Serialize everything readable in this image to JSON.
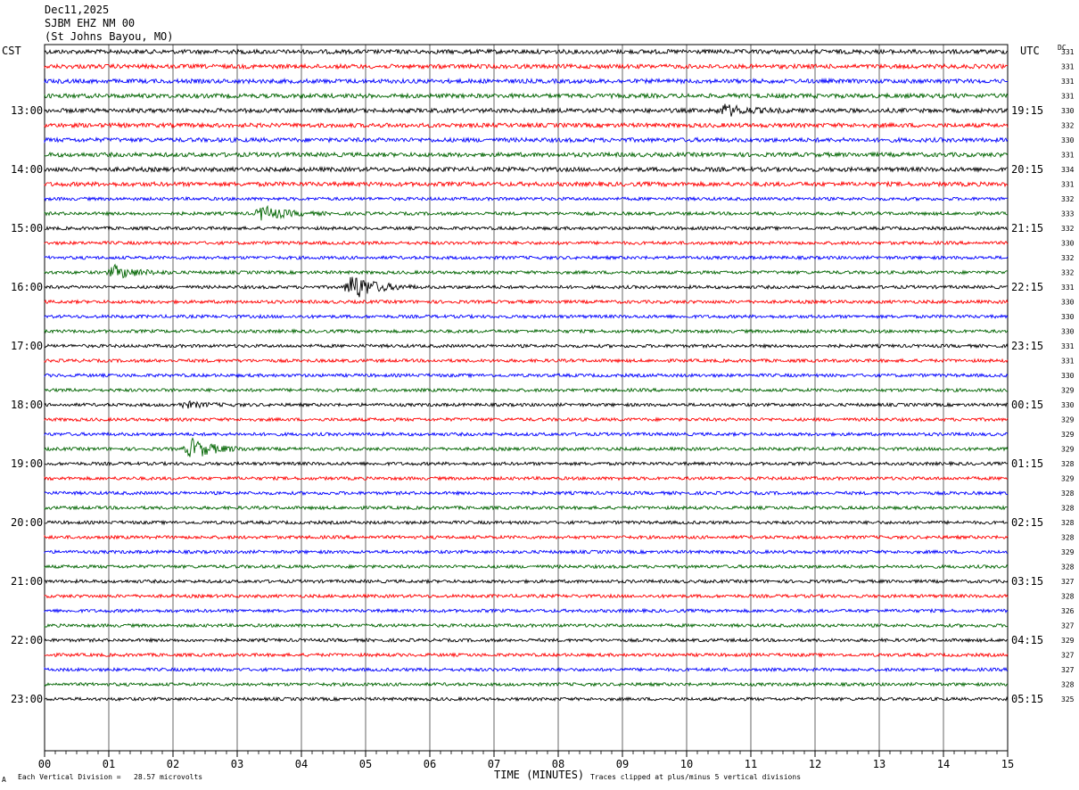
{
  "header": {
    "date": "Dec11,2025",
    "station": "SJBM EHZ NM 00",
    "location": "(St Johns Bayou, MO)"
  },
  "labels": {
    "left_zone": "CST",
    "right_zone": "UTC",
    "dc": "DC",
    "x_title": "TIME (MINUTES)",
    "footer_left_mark": "A",
    "footer_left": "Each Vertical Division =   28.57 microvolts",
    "footer_right": "Traces clipped at plus/minus 5 vertical divisions"
  },
  "chart_data": {
    "type": "line",
    "title": "SJBM EHZ NM 00",
    "xlabel": "TIME (MINUTES)",
    "ylabel": "",
    "xlim": [
      0,
      15
    ],
    "x_ticks": [
      "00",
      "01",
      "02",
      "03",
      "04",
      "05",
      "06",
      "07",
      "08",
      "09",
      "10",
      "11",
      "12",
      "13",
      "14",
      "15"
    ],
    "trace_colors": [
      "#000000",
      "#ff0000",
      "#0000ff",
      "#006400"
    ],
    "left_hour_labels": [
      "13:00",
      "14:00",
      "15:00",
      "16:00",
      "17:00",
      "18:00",
      "19:00",
      "20:00",
      "21:00",
      "22:00",
      "23:00"
    ],
    "right_hour_labels": [
      "19:15",
      "20:15",
      "21:15",
      "22:15",
      "23:15",
      "00:15",
      "01:15",
      "02:15",
      "03:15",
      "04:15",
      "05:15"
    ],
    "dc_offsets": [
      331,
      331,
      331,
      331,
      330,
      332,
      330,
      331,
      334,
      331,
      332,
      333,
      332,
      330,
      332,
      332,
      331,
      330,
      330,
      330,
      331,
      331,
      330,
      329,
      330,
      329,
      329,
      329,
      328,
      329,
      328,
      328,
      328,
      328,
      329,
      328,
      327,
      328,
      326,
      327,
      329,
      327,
      327,
      328,
      325
    ],
    "events": [
      {
        "trace": 11,
        "minute": 3.4,
        "amplitude": 8
      },
      {
        "trace": 15,
        "minute": 1.1,
        "amplitude": 7
      },
      {
        "trace": 16,
        "minute": 4.8,
        "amplitude": 15
      },
      {
        "trace": 24,
        "minute": 2.2,
        "amplitude": 3
      },
      {
        "trace": 27,
        "minute": 2.3,
        "amplitude": 11
      },
      {
        "trace": 4,
        "minute": 10.6,
        "amplitude": 6
      }
    ]
  }
}
